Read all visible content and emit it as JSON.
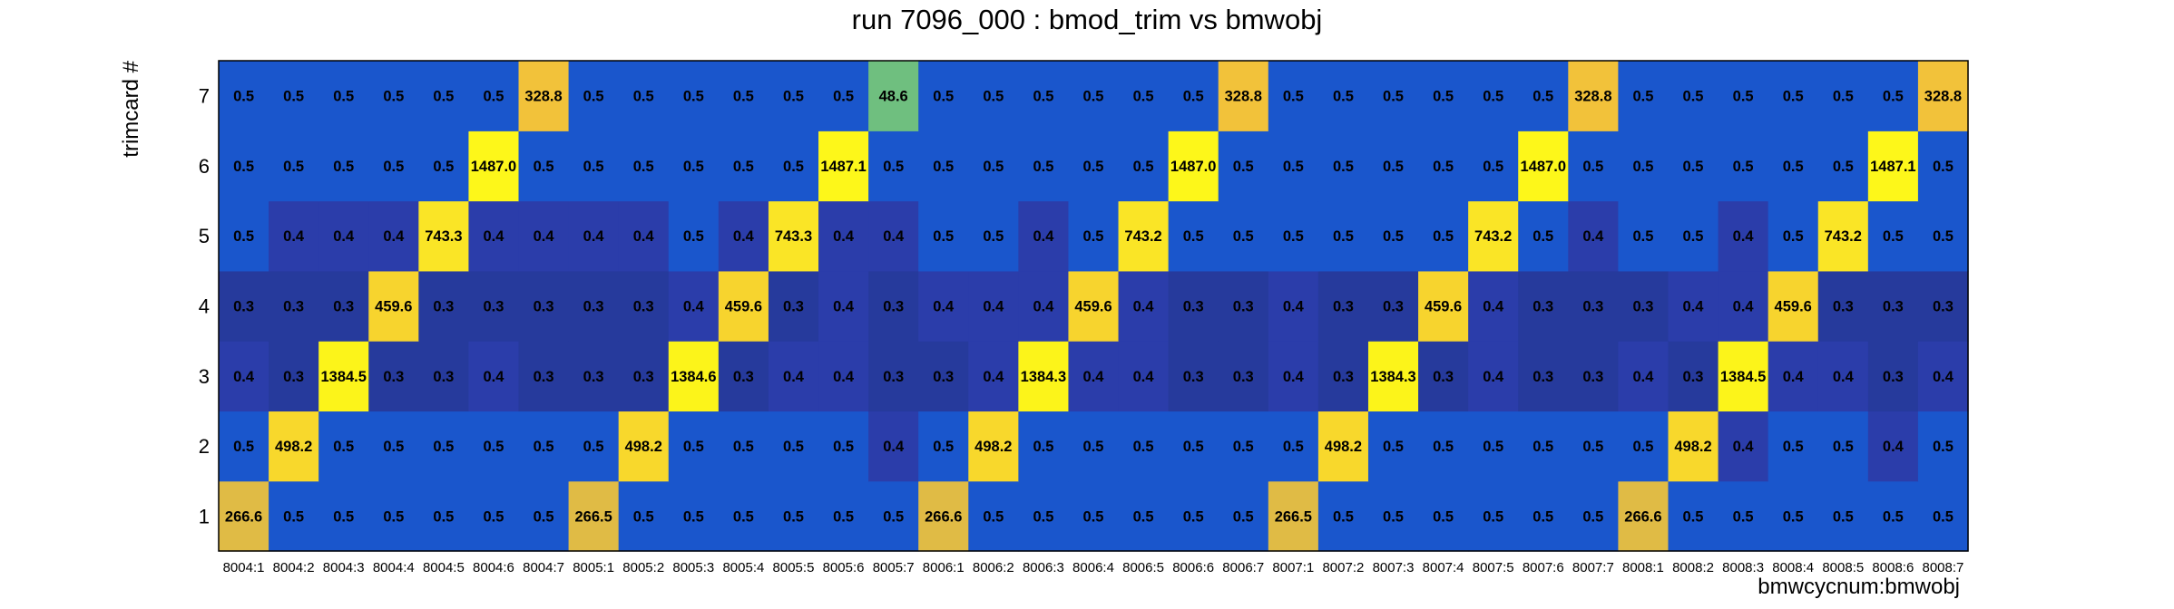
{
  "chart_data": {
    "type": "heatmap",
    "title": "run 7096_000 : bmod_trim vs bmwobj",
    "xlabel": "bmwcycnum:bmwobj",
    "ylabel": "trimcard #",
    "x_categories": [
      "8004:1",
      "8004:2",
      "8004:3",
      "8004:4",
      "8004:5",
      "8004:6",
      "8004:7",
      "8005:1",
      "8005:2",
      "8005:3",
      "8005:4",
      "8005:5",
      "8005:6",
      "8005:7",
      "8006:1",
      "8006:2",
      "8006:3",
      "8006:4",
      "8006:5",
      "8006:6",
      "8006:7",
      "8007:1",
      "8007:2",
      "8007:3",
      "8007:4",
      "8007:5",
      "8007:6",
      "8007:7",
      "8008:1",
      "8008:2",
      "8008:3",
      "8008:4",
      "8008:5",
      "8008:6",
      "8008:7"
    ],
    "y_categories": [
      "1",
      "2",
      "3",
      "4",
      "5",
      "6",
      "7"
    ],
    "z_labels": [
      [
        "266.6",
        "0.5",
        "0.5",
        "0.5",
        "0.5",
        "0.5",
        "0.5",
        "266.5",
        "0.5",
        "0.5",
        "0.5",
        "0.5",
        "0.5",
        "0.5",
        "266.6",
        "0.5",
        "0.5",
        "0.5",
        "0.5",
        "0.5",
        "0.5",
        "266.5",
        "0.5",
        "0.5",
        "0.5",
        "0.5",
        "0.5",
        "0.5",
        "266.6",
        "0.5",
        "0.5",
        "0.5",
        "0.5",
        "0.5",
        "0.5"
      ],
      [
        "0.5",
        "498.2",
        "0.5",
        "0.5",
        "0.5",
        "0.5",
        "0.5",
        "0.5",
        "498.2",
        "0.5",
        "0.5",
        "0.5",
        "0.5",
        "0.4",
        "0.5",
        "498.2",
        "0.5",
        "0.5",
        "0.5",
        "0.5",
        "0.5",
        "0.5",
        "498.2",
        "0.5",
        "0.5",
        "0.5",
        "0.5",
        "0.5",
        "0.5",
        "498.2",
        "0.4",
        "0.5",
        "0.5",
        "0.4",
        "0.5"
      ],
      [
        "0.4",
        "0.3",
        "1384.5",
        "0.3",
        "0.3",
        "0.4",
        "0.3",
        "0.3",
        "0.3",
        "1384.6",
        "0.3",
        "0.4",
        "0.4",
        "0.3",
        "0.3",
        "0.4",
        "1384.3",
        "0.4",
        "0.4",
        "0.3",
        "0.3",
        "0.4",
        "0.3",
        "1384.3",
        "0.3",
        "0.4",
        "0.3",
        "0.3",
        "0.4",
        "0.3",
        "1384.5",
        "0.4",
        "0.4",
        "0.3",
        "0.4"
      ],
      [
        "0.3",
        "0.3",
        "0.3",
        "459.6",
        "0.3",
        "0.3",
        "0.3",
        "0.3",
        "0.3",
        "0.4",
        "459.6",
        "0.3",
        "0.4",
        "0.3",
        "0.4",
        "0.4",
        "0.4",
        "459.6",
        "0.4",
        "0.3",
        "0.3",
        "0.4",
        "0.3",
        "0.3",
        "459.6",
        "0.4",
        "0.3",
        "0.3",
        "0.3",
        "0.4",
        "0.4",
        "459.6",
        "0.3",
        "0.3",
        "0.3"
      ],
      [
        "0.5",
        "0.4",
        "0.4",
        "0.4",
        "743.3",
        "0.4",
        "0.4",
        "0.4",
        "0.4",
        "0.5",
        "0.4",
        "743.3",
        "0.4",
        "0.4",
        "0.5",
        "0.5",
        "0.4",
        "0.5",
        "743.2",
        "0.5",
        "0.5",
        "0.5",
        "0.5",
        "0.5",
        "0.5",
        "743.2",
        "0.5",
        "0.4",
        "0.5",
        "0.5",
        "0.4",
        "0.5",
        "743.2",
        "0.5",
        "0.5"
      ],
      [
        "0.5",
        "0.5",
        "0.5",
        "0.5",
        "0.5",
        "1487.0",
        "0.5",
        "0.5",
        "0.5",
        "0.5",
        "0.5",
        "0.5",
        "1487.1",
        "0.5",
        "0.5",
        "0.5",
        "0.5",
        "0.5",
        "0.5",
        "1487.0",
        "0.5",
        "0.5",
        "0.5",
        "0.5",
        "0.5",
        "0.5",
        "1487.0",
        "0.5",
        "0.5",
        "0.5",
        "0.5",
        "0.5",
        "0.5",
        "1487.1",
        "0.5"
      ],
      [
        "0.5",
        "0.5",
        "0.5",
        "0.5",
        "0.5",
        "0.5",
        "328.8",
        "0.5",
        "0.5",
        "0.5",
        "0.5",
        "0.5",
        "0.5",
        "48.6",
        "0.5",
        "0.5",
        "0.5",
        "0.5",
        "0.5",
        "0.5",
        "328.8",
        "0.5",
        "0.5",
        "0.5",
        "0.5",
        "0.5",
        "0.5",
        "328.8",
        "0.5",
        "0.5",
        "0.5",
        "0.5",
        "0.5",
        "0.5",
        "328.8"
      ]
    ],
    "colors": {
      "val_0.3": "#263a9c",
      "val_0.4": "#2b3daa",
      "val_0.5": "#1a56cc",
      "val_48.6": "#6fbf7f",
      "val_266": "#e0bb45",
      "val_328": "#f2c23a",
      "val_459": "#f7d42e",
      "val_498": "#f8d82c",
      "val_743": "#fae526",
      "val_1384": "#fcf41a",
      "val_1487": "#fdf71a"
    },
    "grid": false,
    "legend": "none"
  }
}
